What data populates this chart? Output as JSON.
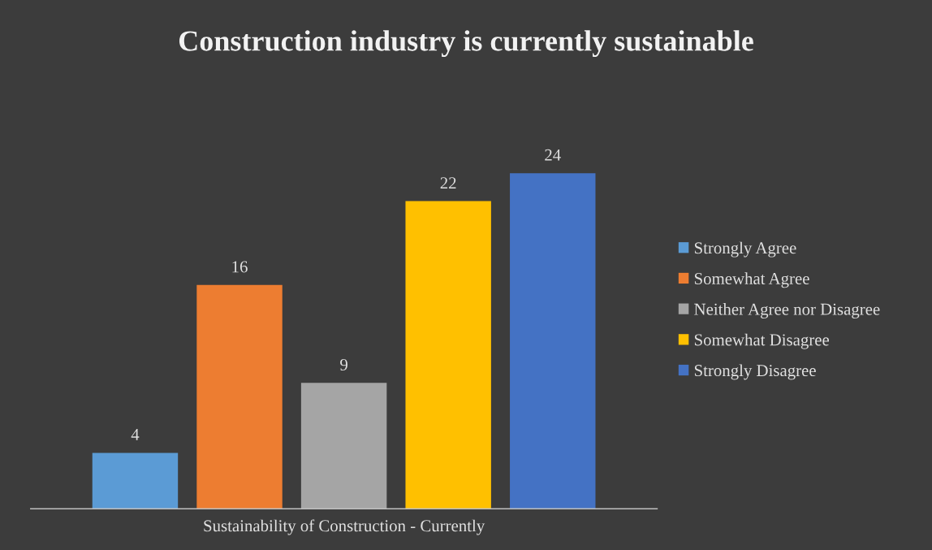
{
  "chart_data": {
    "type": "bar",
    "title": "Construction industry is currently sustainable",
    "xlabel": "Sustainability of Construction - Currently",
    "categories": [
      null,
      null,
      null,
      null,
      null
    ],
    "stacked": true,
    "series": [
      {
        "name": "Strongly Agree",
        "color": "#5b9bd5",
        "values": [
          4,
          null,
          null,
          null,
          null
        ]
      },
      {
        "name": "Somewhat Agree",
        "color": "#ed7d31",
        "values": [
          null,
          16,
          null,
          null,
          null
        ]
      },
      {
        "name": "Neither Agree nor Disagree",
        "color": "#a5a5a5",
        "values": [
          null,
          null,
          9,
          null,
          null
        ]
      },
      {
        "name": "Somewhat Disagree",
        "color": "#ffc000",
        "values": [
          null,
          null,
          null,
          22,
          null
        ]
      },
      {
        "name": "Strongly Disagree",
        "color": "#4472c4",
        "values": [
          null,
          null,
          null,
          null,
          24
        ]
      }
    ],
    "data_labels": true,
    "grid": false,
    "legend": "right"
  }
}
